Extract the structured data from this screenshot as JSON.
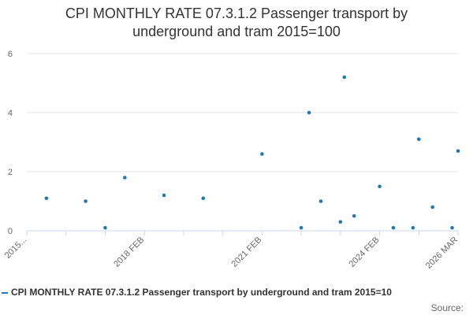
{
  "colors": {
    "series": "#1f78b4",
    "grid": "#e6e6e6",
    "axis": "#ccd6eb",
    "text": "#333333",
    "muted": "#666666"
  },
  "chart_data": {
    "type": "scatter",
    "title_lines": [
      "CPI MONTHLY RATE 07.3.1.2 Passenger transport by",
      "underground and tram 2015=100"
    ],
    "ylim": [
      0,
      6
    ],
    "yticks": [
      0,
      2,
      4,
      6
    ],
    "x_tick_labels": [
      "2015...",
      "2018 FEB",
      "2021 FEB",
      "2024 FEB",
      "2026 MAR"
    ],
    "x_tick_label_positions": [
      0,
      6,
      12,
      18,
      22
    ],
    "x_count": 23,
    "series": [
      {
        "name": "CPI MONTHLY RATE 07.3.1.2 Passenger transport by underground and tram 2015=10",
        "points": [
          {
            "x": 0,
            "y": null
          },
          {
            "x": 1,
            "y": 1.1
          },
          {
            "x": 2,
            "y": null
          },
          {
            "x": 3,
            "y": 1.0
          },
          {
            "x": 4,
            "y": 0.1
          },
          {
            "x": 5,
            "y": 1.8
          },
          {
            "x": 6,
            "y": null
          },
          {
            "x": 7,
            "y": 1.2
          },
          {
            "x": 8,
            "y": null
          },
          {
            "x": 9,
            "y": 1.1
          },
          {
            "x": 10,
            "y": null
          },
          {
            "x": 11,
            "y": null
          },
          {
            "x": 12,
            "y": 2.6
          },
          {
            "x": 13,
            "y": null
          },
          {
            "x": 14,
            "y": 0.1
          },
          {
            "x": 14.4,
            "y": 4.0
          },
          {
            "x": 15,
            "y": 1.0
          },
          {
            "x": 16,
            "y": 0.3
          },
          {
            "x": 16.2,
            "y": 5.2
          },
          {
            "x": 16.7,
            "y": 0.5
          },
          {
            "x": 18,
            "y": 1.5
          },
          {
            "x": 18.7,
            "y": 0.1
          },
          {
            "x": 19.7,
            "y": 0.1
          },
          {
            "x": 20,
            "y": 3.1
          },
          {
            "x": 20.7,
            "y": 0.8
          },
          {
            "x": 21.7,
            "y": 0.1
          },
          {
            "x": 22,
            "y": 2.7
          }
        ]
      }
    ]
  },
  "legend": {
    "label": "CPI MONTHLY RATE 07.3.1.2 Passenger transport by underground and tram 2015=10"
  },
  "source": {
    "label": "Source:"
  }
}
